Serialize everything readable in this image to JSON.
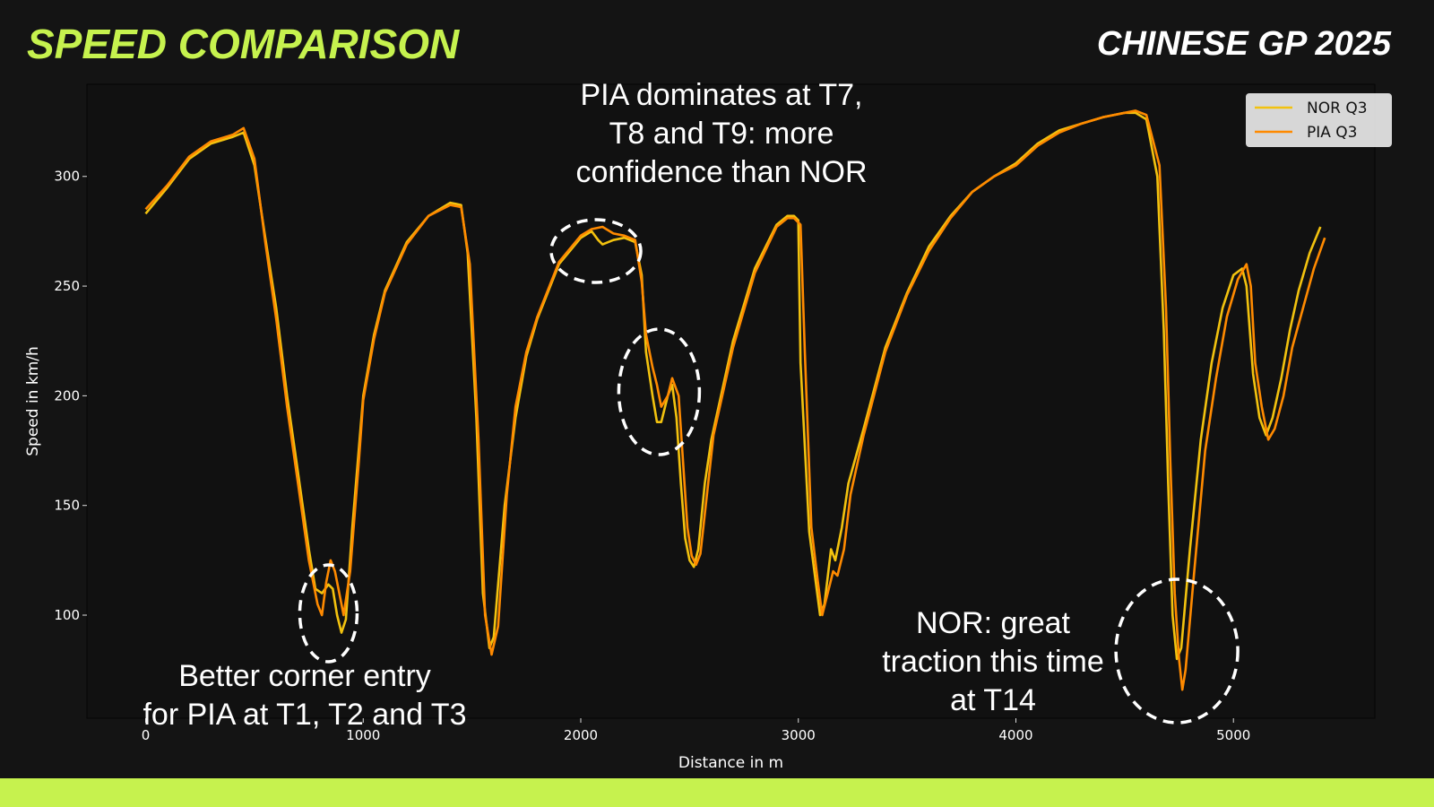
{
  "header": {
    "title": "SPEED COMPARISON",
    "subtitle": "CHINESE GP 2025"
  },
  "colors": {
    "accent": "#c6f24e",
    "nor": "#f2c20f",
    "pia": "#ff8a00",
    "plot_bg": "#111111",
    "page_bg": "#141414"
  },
  "chart_data": {
    "type": "line",
    "title": "",
    "xlabel": "Distance in m",
    "ylabel": "Speed in km/h",
    "xlim": [
      -270,
      5650
    ],
    "ylim": [
      53,
      342
    ],
    "xticks": [
      0,
      1000,
      2000,
      3000,
      4000,
      5000
    ],
    "yticks": [
      100,
      150,
      200,
      250,
      300
    ],
    "grid": false,
    "legend_position": "top-right",
    "series": [
      {
        "name": "NOR Q3",
        "color": "#f2c20f",
        "points": [
          [
            0,
            283
          ],
          [
            100,
            295
          ],
          [
            200,
            308
          ],
          [
            300,
            315
          ],
          [
            400,
            318
          ],
          [
            450,
            320
          ],
          [
            500,
            305
          ],
          [
            550,
            272
          ],
          [
            600,
            240
          ],
          [
            650,
            200
          ],
          [
            700,
            165
          ],
          [
            750,
            130
          ],
          [
            780,
            112
          ],
          [
            810,
            110
          ],
          [
            840,
            114
          ],
          [
            860,
            112
          ],
          [
            880,
            100
          ],
          [
            900,
            92
          ],
          [
            920,
            98
          ],
          [
            950,
            140
          ],
          [
            1000,
            200
          ],
          [
            1050,
            228
          ],
          [
            1100,
            248
          ],
          [
            1200,
            270
          ],
          [
            1300,
            282
          ],
          [
            1400,
            288
          ],
          [
            1450,
            287
          ],
          [
            1480,
            265
          ],
          [
            1520,
            190
          ],
          [
            1550,
            110
          ],
          [
            1580,
            85
          ],
          [
            1600,
            90
          ],
          [
            1650,
            150
          ],
          [
            1700,
            190
          ],
          [
            1750,
            218
          ],
          [
            1800,
            235
          ],
          [
            1900,
            260
          ],
          [
            2000,
            272
          ],
          [
            2050,
            275
          ],
          [
            2080,
            271
          ],
          [
            2100,
            269
          ],
          [
            2150,
            271
          ],
          [
            2200,
            272
          ],
          [
            2250,
            270
          ],
          [
            2280,
            255
          ],
          [
            2300,
            220
          ],
          [
            2330,
            200
          ],
          [
            2350,
            188
          ],
          [
            2370,
            188
          ],
          [
            2400,
            200
          ],
          [
            2420,
            205
          ],
          [
            2440,
            190
          ],
          [
            2460,
            160
          ],
          [
            2480,
            135
          ],
          [
            2500,
            125
          ],
          [
            2520,
            122
          ],
          [
            2540,
            130
          ],
          [
            2570,
            160
          ],
          [
            2600,
            180
          ],
          [
            2700,
            225
          ],
          [
            2800,
            258
          ],
          [
            2900,
            278
          ],
          [
            2950,
            282
          ],
          [
            2980,
            282
          ],
          [
            3000,
            280
          ],
          [
            3010,
            215
          ],
          [
            3050,
            138
          ],
          [
            3080,
            115
          ],
          [
            3100,
            100
          ],
          [
            3120,
            105
          ],
          [
            3150,
            130
          ],
          [
            3170,
            125
          ],
          [
            3200,
            140
          ],
          [
            3230,
            160
          ],
          [
            3300,
            185
          ],
          [
            3400,
            222
          ],
          [
            3500,
            247
          ],
          [
            3600,
            268
          ],
          [
            3700,
            282
          ],
          [
            3800,
            293
          ],
          [
            3900,
            300
          ],
          [
            4000,
            306
          ],
          [
            4100,
            315
          ],
          [
            4200,
            321
          ],
          [
            4300,
            324
          ],
          [
            4400,
            327
          ],
          [
            4500,
            329
          ],
          [
            4550,
            329
          ],
          [
            4600,
            326
          ],
          [
            4650,
            300
          ],
          [
            4680,
            230
          ],
          [
            4700,
            160
          ],
          [
            4720,
            100
          ],
          [
            4740,
            80
          ],
          [
            4760,
            85
          ],
          [
            4800,
            130
          ],
          [
            4850,
            180
          ],
          [
            4900,
            215
          ],
          [
            4950,
            240
          ],
          [
            5000,
            255
          ],
          [
            5040,
            258
          ],
          [
            5060,
            250
          ],
          [
            5090,
            210
          ],
          [
            5120,
            190
          ],
          [
            5150,
            182
          ],
          [
            5180,
            190
          ],
          [
            5220,
            208
          ],
          [
            5260,
            230
          ],
          [
            5300,
            248
          ],
          [
            5350,
            265
          ],
          [
            5400,
            277
          ]
        ]
      },
      {
        "name": "PIA Q3",
        "color": "#ff8a00",
        "points": [
          [
            0,
            285
          ],
          [
            100,
            296
          ],
          [
            200,
            309
          ],
          [
            300,
            316
          ],
          [
            400,
            319
          ],
          [
            450,
            322
          ],
          [
            500,
            308
          ],
          [
            550,
            270
          ],
          [
            600,
            235
          ],
          [
            650,
            195
          ],
          [
            700,
            160
          ],
          [
            750,
            125
          ],
          [
            790,
            105
          ],
          [
            810,
            100
          ],
          [
            830,
            115
          ],
          [
            850,
            125
          ],
          [
            870,
            120
          ],
          [
            890,
            110
          ],
          [
            910,
            100
          ],
          [
            940,
            120
          ],
          [
            980,
            170
          ],
          [
            1000,
            198
          ],
          [
            1050,
            226
          ],
          [
            1100,
            247
          ],
          [
            1200,
            269
          ],
          [
            1300,
            282
          ],
          [
            1400,
            287
          ],
          [
            1450,
            286
          ],
          [
            1490,
            260
          ],
          [
            1530,
            180
          ],
          [
            1560,
            100
          ],
          [
            1590,
            82
          ],
          [
            1620,
            95
          ],
          [
            1660,
            155
          ],
          [
            1700,
            195
          ],
          [
            1750,
            220
          ],
          [
            1800,
            236
          ],
          [
            1900,
            261
          ],
          [
            2000,
            273
          ],
          [
            2050,
            276
          ],
          [
            2100,
            277
          ],
          [
            2150,
            274
          ],
          [
            2200,
            273
          ],
          [
            2250,
            271
          ],
          [
            2280,
            252
          ],
          [
            2300,
            228
          ],
          [
            2330,
            213
          ],
          [
            2350,
            205
          ],
          [
            2370,
            195
          ],
          [
            2400,
            200
          ],
          [
            2420,
            208
          ],
          [
            2450,
            200
          ],
          [
            2470,
            170
          ],
          [
            2490,
            140
          ],
          [
            2510,
            127
          ],
          [
            2530,
            123
          ],
          [
            2550,
            128
          ],
          [
            2580,
            155
          ],
          [
            2610,
            182
          ],
          [
            2700,
            222
          ],
          [
            2800,
            256
          ],
          [
            2900,
            277
          ],
          [
            2950,
            281
          ],
          [
            2980,
            281
          ],
          [
            3010,
            278
          ],
          [
            3030,
            220
          ],
          [
            3060,
            140
          ],
          [
            3090,
            115
          ],
          [
            3110,
            100
          ],
          [
            3130,
            108
          ],
          [
            3160,
            120
          ],
          [
            3180,
            118
          ],
          [
            3210,
            130
          ],
          [
            3240,
            155
          ],
          [
            3300,
            182
          ],
          [
            3400,
            220
          ],
          [
            3500,
            246
          ],
          [
            3600,
            266
          ],
          [
            3700,
            281
          ],
          [
            3800,
            293
          ],
          [
            3900,
            300
          ],
          [
            4000,
            305
          ],
          [
            4100,
            314
          ],
          [
            4200,
            320
          ],
          [
            4300,
            324
          ],
          [
            4400,
            327
          ],
          [
            4500,
            329
          ],
          [
            4550,
            330
          ],
          [
            4600,
            328
          ],
          [
            4660,
            305
          ],
          [
            4690,
            240
          ],
          [
            4710,
            170
          ],
          [
            4730,
            110
          ],
          [
            4750,
            80
          ],
          [
            4765,
            66
          ],
          [
            4780,
            75
          ],
          [
            4820,
            120
          ],
          [
            4870,
            175
          ],
          [
            4920,
            208
          ],
          [
            4970,
            236
          ],
          [
            5020,
            253
          ],
          [
            5060,
            260
          ],
          [
            5080,
            250
          ],
          [
            5100,
            215
          ],
          [
            5130,
            195
          ],
          [
            5160,
            180
          ],
          [
            5190,
            185
          ],
          [
            5230,
            200
          ],
          [
            5270,
            222
          ],
          [
            5320,
            240
          ],
          [
            5370,
            258
          ],
          [
            5420,
            272
          ]
        ]
      }
    ],
    "annotations": [
      {
        "text_lines": [
          "PIA dominates at T7,",
          "T8 and T9: more",
          "confidence than NOR"
        ],
        "target": [
          2070,
          272
        ]
      },
      {
        "text_lines": [
          "Better corner entry",
          "for PIA at T1, T2 and T3"
        ],
        "target": [
          840,
          105
        ]
      },
      {
        "text_lines": [
          "NOR: great",
          "traction this time",
          "at T14"
        ],
        "target": [
          4740,
          90
        ]
      },
      {
        "text_lines": [],
        "target": [
          2360,
          205
        ]
      }
    ]
  }
}
